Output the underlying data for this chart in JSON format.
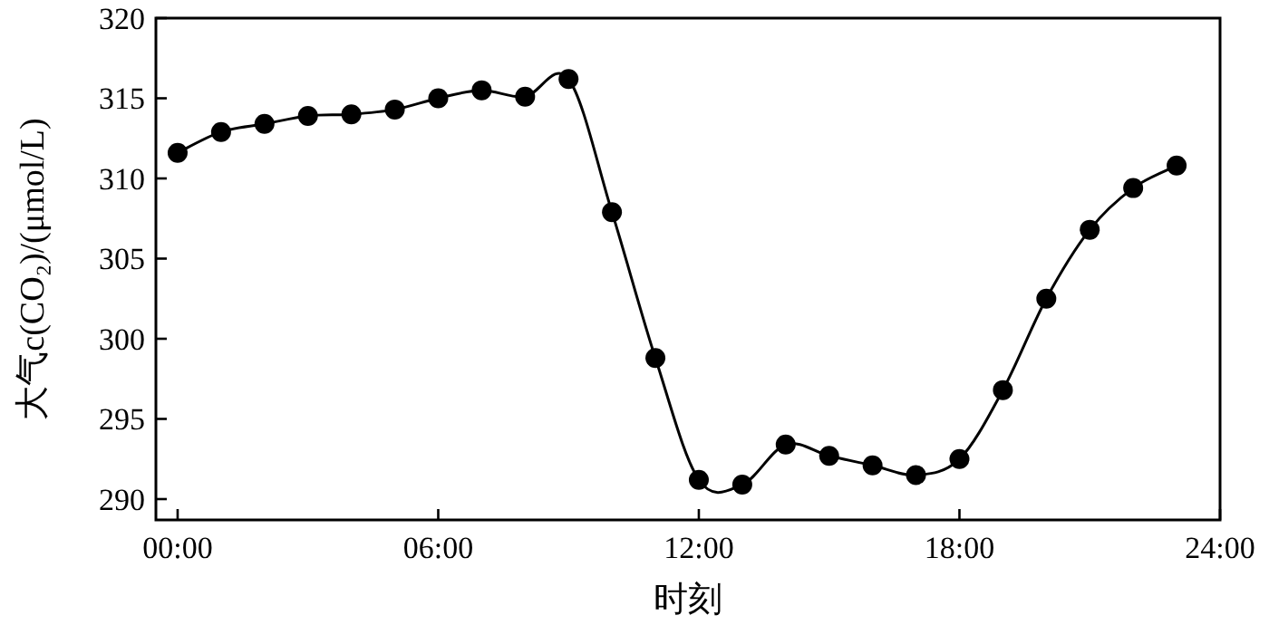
{
  "chart_data": {
    "type": "line",
    "xlabel": "时刻",
    "ylabel": "大气c(CO₂)/(μmol/L)",
    "x": [
      0,
      1,
      2,
      3,
      4,
      5,
      6,
      7,
      8,
      9,
      10,
      11,
      12,
      13,
      14,
      15,
      16,
      17,
      18,
      19,
      20,
      21,
      22,
      23
    ],
    "values": [
      311.6,
      312.9,
      313.4,
      313.9,
      314.0,
      314.3,
      315.0,
      315.5,
      315.1,
      316.2,
      307.9,
      298.8,
      291.2,
      290.9,
      293.4,
      292.7,
      292.1,
      291.5,
      292.5,
      296.8,
      302.5,
      306.8,
      309.4,
      310.8
    ],
    "color": "#000000",
    "xlim": [
      -0.5,
      24
    ],
    "ylim": [
      288.7,
      320
    ],
    "xticks": [
      {
        "value": 0,
        "label": "00:00"
      },
      {
        "value": 6,
        "label": "06:00"
      },
      {
        "value": 12,
        "label": "12:00"
      },
      {
        "value": 18,
        "label": "18:00"
      },
      {
        "value": 24,
        "label": "24:00"
      }
    ],
    "yticks": [
      290,
      295,
      300,
      305,
      310,
      315,
      320
    ],
    "marker": "circle",
    "line_style": "solid",
    "grid": false
  }
}
